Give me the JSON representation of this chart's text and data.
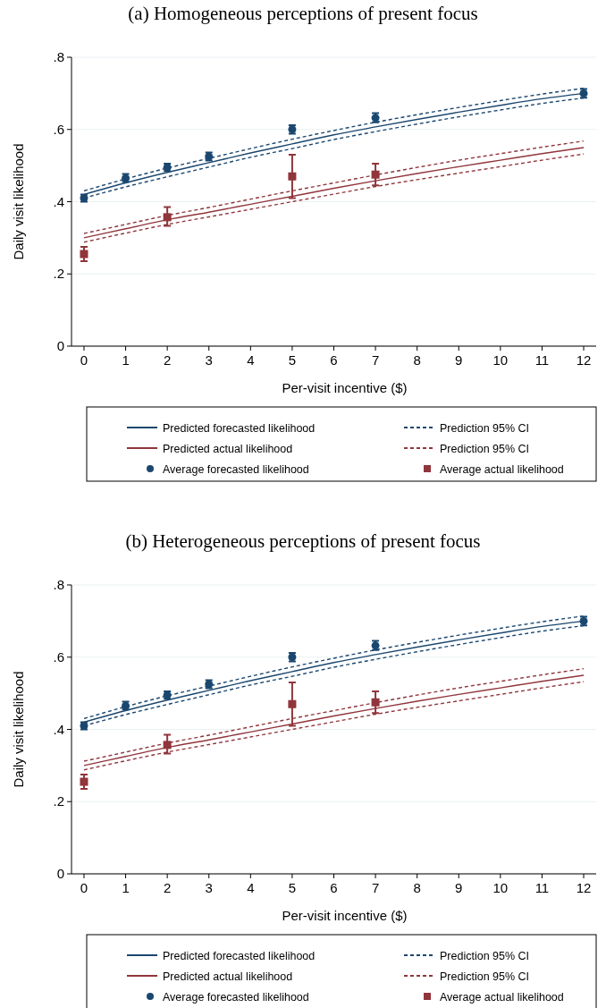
{
  "chart_data": [
    {
      "type": "line",
      "title": "(a) Homogeneous perceptions of present focus",
      "xlabel": "Per-visit incentive ($)",
      "ylabel": "Daily visit likelihood",
      "xlim": [
        -0.3,
        12.3
      ],
      "xticks": [
        0,
        1,
        2,
        3,
        4,
        5,
        6,
        7,
        8,
        9,
        10,
        11,
        12
      ],
      "ylim": [
        0,
        0.8
      ],
      "yticks": [
        {
          "value": 0,
          "label": "0"
        },
        {
          "value": 0.2,
          "label": ".2"
        },
        {
          "value": 0.4,
          "label": ".4"
        },
        {
          "value": 0.6,
          "label": ".6"
        },
        {
          "value": 0.8,
          "label": ".8"
        }
      ],
      "grid": "y",
      "legend": "bottom",
      "series": [
        {
          "name": "Predicted forecasted likelihood",
          "color": "#1a476f",
          "line_style": "solid",
          "x": [
            0,
            1,
            2,
            3,
            4,
            5,
            6,
            7,
            8,
            9,
            10,
            11,
            12
          ],
          "values": [
            0.42,
            0.452,
            0.481,
            0.508,
            0.535,
            0.56,
            0.585,
            0.607,
            0.628,
            0.648,
            0.667,
            0.685,
            0.7
          ]
        },
        {
          "name": "Prediction 95% CI",
          "color": "#1a476f",
          "line_style": "dashed",
          "x": [
            0,
            1,
            2,
            3,
            4,
            5,
            6,
            7,
            8,
            9,
            10,
            11,
            12
          ],
          "values": [
            0.43,
            0.463,
            0.493,
            0.52,
            0.547,
            0.573,
            0.597,
            0.62,
            0.641,
            0.661,
            0.68,
            0.698,
            0.714
          ]
        },
        {
          "color": "#1a476f",
          "line_style": "dashed",
          "x": [
            0,
            1,
            2,
            3,
            4,
            5,
            6,
            7,
            8,
            9,
            10,
            11,
            12
          ],
          "values": [
            0.41,
            0.441,
            0.469,
            0.496,
            0.523,
            0.547,
            0.572,
            0.594,
            0.615,
            0.635,
            0.654,
            0.672,
            0.687
          ]
        },
        {
          "name": "Predicted actual likelihood",
          "color": "#90353b",
          "line_style": "solid",
          "x": [
            0,
            1,
            2,
            3,
            4,
            5,
            6,
            7,
            8,
            9,
            10,
            11,
            12
          ],
          "values": [
            0.3,
            0.325,
            0.35,
            0.371,
            0.393,
            0.415,
            0.437,
            0.458,
            0.478,
            0.497,
            0.515,
            0.533,
            0.55
          ]
        },
        {
          "name": "Prediction 95% CI",
          "color": "#90353b",
          "line_style": "dashed",
          "x": [
            0,
            1,
            2,
            3,
            4,
            5,
            6,
            7,
            8,
            9,
            10,
            11,
            12
          ],
          "values": [
            0.312,
            0.337,
            0.362,
            0.384,
            0.407,
            0.43,
            0.452,
            0.474,
            0.495,
            0.515,
            0.533,
            0.551,
            0.568
          ]
        },
        {
          "color": "#90353b",
          "line_style": "dashed",
          "x": [
            0,
            1,
            2,
            3,
            4,
            5,
            6,
            7,
            8,
            9,
            10,
            11,
            12
          ],
          "values": [
            0.288,
            0.313,
            0.337,
            0.358,
            0.379,
            0.4,
            0.421,
            0.442,
            0.461,
            0.479,
            0.497,
            0.515,
            0.532
          ]
        },
        {
          "name": "Average forecasted likelihood",
          "color": "#1a476f",
          "type": "scatter",
          "marker": "circle",
          "x": [
            0,
            1,
            2,
            3,
            5,
            7,
            12
          ],
          "values": [
            0.41,
            0.465,
            0.495,
            0.525,
            0.6,
            0.632,
            0.7
          ],
          "errors": [
            [
              0.4,
              0.42
            ],
            [
              0.455,
              0.477
            ],
            [
              0.485,
              0.505
            ],
            [
              0.514,
              0.536
            ],
            [
              0.588,
              0.612
            ],
            [
              0.62,
              0.645
            ],
            [
              0.688,
              0.712
            ]
          ]
        },
        {
          "name": "Average actual likelihood",
          "color": "#90353b",
          "type": "scatter",
          "marker": "square",
          "x": [
            0,
            2,
            5,
            7
          ],
          "values": [
            0.255,
            0.357,
            0.47,
            0.475
          ],
          "errors": [
            [
              0.235,
              0.275
            ],
            [
              0.333,
              0.385
            ],
            [
              0.41,
              0.53
            ],
            [
              0.445,
              0.505
            ]
          ]
        }
      ]
    },
    {
      "type": "line",
      "title": "(b) Heterogeneous perceptions of present focus",
      "xlabel": "Per-visit incentive ($)",
      "ylabel": "Daily visit likelihood",
      "xlim": [
        -0.3,
        12.3
      ],
      "xticks": [
        0,
        1,
        2,
        3,
        4,
        5,
        6,
        7,
        8,
        9,
        10,
        11,
        12
      ],
      "ylim": [
        0,
        0.8
      ],
      "yticks": [
        {
          "value": 0,
          "label": "0"
        },
        {
          "value": 0.2,
          "label": ".2"
        },
        {
          "value": 0.4,
          "label": ".4"
        },
        {
          "value": 0.6,
          "label": ".6"
        },
        {
          "value": 0.8,
          "label": ".8"
        }
      ],
      "grid": "y",
      "legend": "bottom",
      "series": [
        {
          "name": "Predicted forecasted likelihood",
          "color": "#1a476f",
          "line_style": "solid",
          "x": [
            0,
            1,
            2,
            3,
            4,
            5,
            6,
            7,
            8,
            9,
            10,
            11,
            12
          ],
          "values": [
            0.42,
            0.452,
            0.481,
            0.508,
            0.535,
            0.56,
            0.585,
            0.607,
            0.628,
            0.648,
            0.667,
            0.685,
            0.7
          ]
        },
        {
          "name": "Prediction 95% CI",
          "color": "#1a476f",
          "line_style": "dashed",
          "x": [
            0,
            1,
            2,
            3,
            4,
            5,
            6,
            7,
            8,
            9,
            10,
            11,
            12
          ],
          "values": [
            0.43,
            0.463,
            0.493,
            0.52,
            0.547,
            0.573,
            0.597,
            0.62,
            0.641,
            0.661,
            0.68,
            0.698,
            0.714
          ]
        },
        {
          "color": "#1a476f",
          "line_style": "dashed",
          "x": [
            0,
            1,
            2,
            3,
            4,
            5,
            6,
            7,
            8,
            9,
            10,
            11,
            12
          ],
          "values": [
            0.41,
            0.441,
            0.469,
            0.496,
            0.523,
            0.547,
            0.572,
            0.594,
            0.615,
            0.635,
            0.654,
            0.672,
            0.687
          ]
        },
        {
          "name": "Predicted actual likelihood",
          "color": "#90353b",
          "line_style": "solid",
          "x": [
            0,
            1,
            2,
            3,
            4,
            5,
            6,
            7,
            8,
            9,
            10,
            11,
            12
          ],
          "values": [
            0.3,
            0.325,
            0.35,
            0.371,
            0.393,
            0.415,
            0.437,
            0.458,
            0.478,
            0.497,
            0.515,
            0.533,
            0.55
          ]
        },
        {
          "name": "Prediction 95% CI",
          "color": "#90353b",
          "line_style": "dashed",
          "x": [
            0,
            1,
            2,
            3,
            4,
            5,
            6,
            7,
            8,
            9,
            10,
            11,
            12
          ],
          "values": [
            0.312,
            0.337,
            0.362,
            0.384,
            0.407,
            0.43,
            0.452,
            0.474,
            0.495,
            0.515,
            0.533,
            0.551,
            0.568
          ]
        },
        {
          "color": "#90353b",
          "line_style": "dashed",
          "x": [
            0,
            1,
            2,
            3,
            4,
            5,
            6,
            7,
            8,
            9,
            10,
            11,
            12
          ],
          "values": [
            0.288,
            0.313,
            0.337,
            0.358,
            0.379,
            0.4,
            0.421,
            0.442,
            0.461,
            0.479,
            0.497,
            0.515,
            0.532
          ]
        },
        {
          "name": "Average forecasted likelihood",
          "color": "#1a476f",
          "type": "scatter",
          "marker": "circle",
          "x": [
            0,
            1,
            2,
            3,
            5,
            7,
            12
          ],
          "values": [
            0.41,
            0.465,
            0.495,
            0.525,
            0.6,
            0.632,
            0.7
          ],
          "errors": [
            [
              0.4,
              0.42
            ],
            [
              0.455,
              0.477
            ],
            [
              0.485,
              0.505
            ],
            [
              0.514,
              0.536
            ],
            [
              0.588,
              0.612
            ],
            [
              0.62,
              0.645
            ],
            [
              0.688,
              0.712
            ]
          ]
        },
        {
          "name": "Average actual likelihood",
          "color": "#90353b",
          "type": "scatter",
          "marker": "square",
          "x": [
            0,
            2,
            5,
            7
          ],
          "values": [
            0.255,
            0.357,
            0.47,
            0.475
          ],
          "errors": [
            [
              0.235,
              0.275
            ],
            [
              0.333,
              0.385
            ],
            [
              0.41,
              0.53
            ],
            [
              0.445,
              0.505
            ]
          ]
        }
      ]
    }
  ]
}
